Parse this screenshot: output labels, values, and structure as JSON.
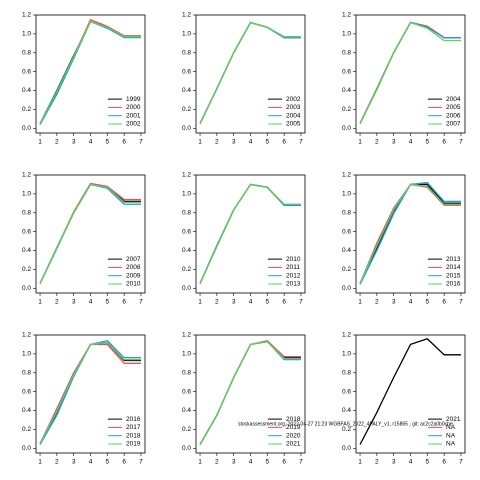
{
  "chart_data": [
    {
      "type": "line",
      "x": [
        1,
        2,
        3,
        4,
        5,
        6,
        7
      ],
      "xlim": [
        0.76,
        7.24
      ],
      "ylim": [
        -0.05,
        1.2
      ],
      "xticks": [
        1,
        2,
        3,
        4,
        5,
        6,
        7
      ],
      "yticks": [
        {
          "value": 0,
          "label": "0.0"
        },
        0.2,
        0.4,
        0.6,
        0.8,
        {
          "value": 1,
          "label": "1.0"
        },
        1.2
      ],
      "legend": "lower right",
      "series": [
        {
          "name": "1999",
          "color": "#000000",
          "values": [
            0.05,
            0.4,
            0.77,
            1.13,
            1.07,
            0.97,
            0.97
          ]
        },
        {
          "name": "2000",
          "color": "#df536b",
          "values": [
            0.05,
            0.38,
            0.76,
            1.15,
            1.08,
            0.98,
            0.98
          ]
        },
        {
          "name": "2001",
          "color": "#2297e6",
          "values": [
            0.04,
            0.36,
            0.74,
            1.13,
            1.06,
            0.96,
            0.96
          ]
        },
        {
          "name": "2002",
          "color": "#61d04f",
          "values": [
            0.05,
            0.39,
            0.76,
            1.13,
            1.07,
            0.97,
            0.97
          ]
        }
      ]
    },
    {
      "type": "line",
      "x": [
        1,
        2,
        3,
        4,
        5,
        6,
        7
      ],
      "xlim": [
        0.76,
        7.24
      ],
      "ylim": [
        -0.05,
        1.2
      ],
      "xticks": [
        1,
        2,
        3,
        4,
        5,
        6,
        7
      ],
      "yticks": [
        {
          "value": 0,
          "label": "0.0"
        },
        0.2,
        0.4,
        0.6,
        0.8,
        {
          "value": 1,
          "label": "1.0"
        },
        1.2
      ],
      "legend": "lower right",
      "series": [
        {
          "name": "2002",
          "color": "#000000",
          "values": [
            0.05,
            0.42,
            0.8,
            1.12,
            1.07,
            0.96,
            0.96
          ]
        },
        {
          "name": "2003",
          "color": "#df536b",
          "values": [
            0.05,
            0.42,
            0.8,
            1.12,
            1.07,
            0.96,
            0.96
          ]
        },
        {
          "name": "2004",
          "color": "#2297e6",
          "values": [
            0.05,
            0.42,
            0.8,
            1.12,
            1.07,
            0.96,
            0.96
          ]
        },
        {
          "name": "2005",
          "color": "#61d04f",
          "values": [
            0.05,
            0.42,
            0.8,
            1.12,
            1.07,
            0.97,
            0.97
          ]
        }
      ]
    },
    {
      "type": "line",
      "x": [
        1,
        2,
        3,
        4,
        5,
        6,
        7
      ],
      "xlim": [
        0.76,
        7.24
      ],
      "ylim": [
        -0.05,
        1.2
      ],
      "xticks": [
        1,
        2,
        3,
        4,
        5,
        6,
        7
      ],
      "yticks": [
        {
          "value": 0,
          "label": "0.0"
        },
        0.2,
        0.4,
        0.6,
        0.8,
        {
          "value": 1,
          "label": "1.0"
        },
        1.2
      ],
      "legend": "lower right",
      "series": [
        {
          "name": "2004",
          "color": "#000000",
          "values": [
            0.05,
            0.42,
            0.8,
            1.12,
            1.08,
            0.96,
            0.96
          ]
        },
        {
          "name": "2005",
          "color": "#df536b",
          "values": [
            0.05,
            0.42,
            0.8,
            1.12,
            1.08,
            0.96,
            0.96
          ]
        },
        {
          "name": "2006",
          "color": "#2297e6",
          "values": [
            0.05,
            0.41,
            0.8,
            1.12,
            1.07,
            0.96,
            0.96
          ]
        },
        {
          "name": "2007",
          "color": "#61d04f",
          "values": [
            0.05,
            0.41,
            0.8,
            1.12,
            1.06,
            0.93,
            0.93
          ]
        }
      ]
    },
    {
      "type": "line",
      "x": [
        1,
        2,
        3,
        4,
        5,
        6,
        7
      ],
      "xlim": [
        0.76,
        7.24
      ],
      "ylim": [
        -0.05,
        1.2
      ],
      "xticks": [
        1,
        2,
        3,
        4,
        5,
        6,
        7
      ],
      "yticks": [
        {
          "value": 0,
          "label": "0.0"
        },
        0.2,
        0.4,
        0.6,
        0.8,
        {
          "value": 1,
          "label": "1.0"
        },
        1.2
      ],
      "legend": "lower right",
      "series": [
        {
          "name": "2007",
          "color": "#000000",
          "values": [
            0.05,
            0.43,
            0.8,
            1.1,
            1.07,
            0.92,
            0.92
          ]
        },
        {
          "name": "2008",
          "color": "#df536b",
          "values": [
            0.05,
            0.43,
            0.81,
            1.11,
            1.08,
            0.94,
            0.94
          ]
        },
        {
          "name": "2009",
          "color": "#2297e6",
          "values": [
            0.05,
            0.42,
            0.8,
            1.1,
            1.06,
            0.89,
            0.89
          ]
        },
        {
          "name": "2010",
          "color": "#61d04f",
          "values": [
            0.05,
            0.43,
            0.8,
            1.1,
            1.07,
            0.91,
            0.91
          ]
        }
      ]
    },
    {
      "type": "line",
      "x": [
        1,
        2,
        3,
        4,
        5,
        6,
        7
      ],
      "xlim": [
        0.76,
        7.24
      ],
      "ylim": [
        -0.05,
        1.2
      ],
      "xticks": [
        1,
        2,
        3,
        4,
        5,
        6,
        7
      ],
      "yticks": [
        {
          "value": 0,
          "label": "0.0"
        },
        0.2,
        0.4,
        0.6,
        0.8,
        {
          "value": 1,
          "label": "1.0"
        },
        1.2
      ],
      "legend": "lower right",
      "series": [
        {
          "name": "2010",
          "color": "#000000",
          "values": [
            0.05,
            0.45,
            0.83,
            1.1,
            1.07,
            0.88,
            0.88
          ]
        },
        {
          "name": "2011",
          "color": "#df536b",
          "values": [
            0.05,
            0.45,
            0.83,
            1.1,
            1.07,
            0.88,
            0.88
          ]
        },
        {
          "name": "2012",
          "color": "#2297e6",
          "values": [
            0.05,
            0.45,
            0.83,
            1.1,
            1.07,
            0.88,
            0.88
          ]
        },
        {
          "name": "2013",
          "color": "#61d04f",
          "values": [
            0.05,
            0.44,
            0.83,
            1.1,
            1.07,
            0.89,
            0.89
          ]
        }
      ]
    },
    {
      "type": "line",
      "x": [
        1,
        2,
        3,
        4,
        5,
        6,
        7
      ],
      "xlim": [
        0.76,
        7.24
      ],
      "ylim": [
        -0.05,
        1.2
      ],
      "xticks": [
        1,
        2,
        3,
        4,
        5,
        6,
        7
      ],
      "yticks": [
        {
          "value": 0,
          "label": "0.0"
        },
        0.2,
        0.4,
        0.6,
        0.8,
        {
          "value": 1,
          "label": "1.0"
        },
        1.2
      ],
      "legend": "lower right",
      "series": [
        {
          "name": "2013",
          "color": "#000000",
          "values": [
            0.05,
            0.43,
            0.82,
            1.1,
            1.1,
            0.9,
            0.9
          ]
        },
        {
          "name": "2014",
          "color": "#df536b",
          "values": [
            0.05,
            0.48,
            0.85,
            1.1,
            1.07,
            0.88,
            0.88
          ]
        },
        {
          "name": "2015",
          "color": "#2297e6",
          "values": [
            0.04,
            0.4,
            0.79,
            1.1,
            1.12,
            0.92,
            0.92
          ]
        },
        {
          "name": "2016",
          "color": "#61d04f",
          "values": [
            0.05,
            0.45,
            0.83,
            1.1,
            1.08,
            0.89,
            0.89
          ]
        }
      ]
    },
    {
      "type": "line",
      "x": [
        1,
        2,
        3,
        4,
        5,
        6,
        7
      ],
      "xlim": [
        0.76,
        7.24
      ],
      "ylim": [
        -0.05,
        1.2
      ],
      "xticks": [
        1,
        2,
        3,
        4,
        5,
        6,
        7
      ],
      "yticks": [
        {
          "value": 0,
          "label": "0.0"
        },
        0.2,
        0.4,
        0.6,
        0.8,
        {
          "value": 1,
          "label": "1.0"
        },
        1.2
      ],
      "legend": "lower right",
      "series": [
        {
          "name": "2016",
          "color": "#000000",
          "values": [
            0.05,
            0.38,
            0.78,
            1.1,
            1.12,
            0.93,
            0.93
          ]
        },
        {
          "name": "2017",
          "color": "#df536b",
          "values": [
            0.05,
            0.42,
            0.8,
            1.1,
            1.1,
            0.9,
            0.9
          ]
        },
        {
          "name": "2018",
          "color": "#2297e6",
          "values": [
            0.04,
            0.35,
            0.76,
            1.1,
            1.14,
            0.96,
            0.96
          ]
        },
        {
          "name": "2019",
          "color": "#61d04f",
          "values": [
            0.05,
            0.39,
            0.78,
            1.1,
            1.12,
            0.94,
            0.94
          ]
        }
      ]
    },
    {
      "type": "line",
      "x": [
        1,
        2,
        3,
        4,
        5,
        6,
        7
      ],
      "xlim": [
        0.76,
        7.24
      ],
      "ylim": [
        -0.05,
        1.2
      ],
      "xticks": [
        1,
        2,
        3,
        4,
        5,
        6,
        7
      ],
      "yticks": [
        {
          "value": 0,
          "label": "0.0"
        },
        0.2,
        0.4,
        0.6,
        0.8,
        {
          "value": 1,
          "label": "1.0"
        },
        1.2
      ],
      "legend": "lower right",
      "annotation": "stockassessment.org, 2022-04-27 21:23 WGBFAS_2022_4PALY_v1, r15865 , git: ac2c2a0b0cbe",
      "series": [
        {
          "name": "2018",
          "color": "#000000",
          "values": [
            0.04,
            0.35,
            0.75,
            1.1,
            1.13,
            0.96,
            0.96
          ]
        },
        {
          "name": "2019",
          "color": "#df536b",
          "values": [
            0.04,
            0.35,
            0.75,
            1.1,
            1.14,
            0.97,
            0.97
          ]
        },
        {
          "name": "2020",
          "color": "#2297e6",
          "values": [
            0.04,
            0.35,
            0.75,
            1.1,
            1.13,
            0.94,
            0.94
          ]
        },
        {
          "name": "2021",
          "color": "#61d04f",
          "values": [
            0.04,
            0.35,
            0.75,
            1.1,
            1.13,
            0.95,
            0.95
          ]
        }
      ]
    },
    {
      "type": "line",
      "x": [
        1,
        2,
        3,
        4,
        5,
        6,
        7
      ],
      "xlim": [
        0.76,
        7.24
      ],
      "ylim": [
        -0.05,
        1.2
      ],
      "xticks": [
        1,
        2,
        3,
        4,
        5,
        6,
        7
      ],
      "yticks": [
        {
          "value": 0,
          "label": "0.0"
        },
        0.2,
        0.4,
        0.6,
        0.8,
        {
          "value": 1,
          "label": "1.0"
        },
        1.2
      ],
      "legend": "lower right",
      "series": [
        {
          "name": "2021",
          "color": "#000000",
          "values": [
            0.04,
            0.38,
            0.75,
            1.1,
            1.16,
            0.99,
            0.99
          ]
        },
        {
          "name": "NA",
          "color": "#df536b",
          "values": [
            null,
            null,
            null,
            null,
            null,
            null,
            null
          ]
        },
        {
          "name": "NA",
          "color": "#2297e6",
          "values": [
            null,
            null,
            null,
            null,
            null,
            null,
            null
          ]
        },
        {
          "name": "NA",
          "color": "#61d04f",
          "values": [
            null,
            null,
            null,
            null,
            null,
            null,
            null
          ]
        }
      ]
    }
  ]
}
